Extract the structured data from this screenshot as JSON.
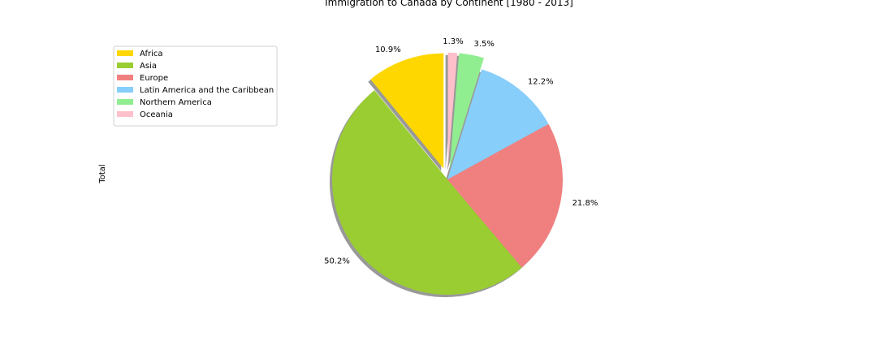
{
  "chart_data": {
    "type": "pie",
    "title": "Immigration to Canada by Continent [1980 - 2013]",
    "ylabel": "Total",
    "start_angle_deg": 90,
    "counterclock": true,
    "shadow": true,
    "legend_position": "upper-left",
    "slices": [
      {
        "label": "Africa",
        "pct": 10.9,
        "pct_label": "10.9%",
        "color": "#FFD700",
        "explode": 0.1
      },
      {
        "label": "Asia",
        "pct": 50.2,
        "pct_label": "50.2%",
        "color": "#9ACD32",
        "explode": 0
      },
      {
        "label": "Europe",
        "pct": 21.8,
        "pct_label": "21.8%",
        "color": "#F08080",
        "explode": 0
      },
      {
        "label": "Latin America and the Caribbean",
        "pct": 12.2,
        "pct_label": "12.2%",
        "color": "#87CEFA",
        "explode": 0
      },
      {
        "label": "Northern America",
        "pct": 3.5,
        "pct_label": "3.5%",
        "color": "#90EE90",
        "explode": 0.1
      },
      {
        "label": "Oceania",
        "pct": 1.3,
        "pct_label": "1.3%",
        "color": "#FFC0CB",
        "explode": 0.1
      }
    ]
  }
}
